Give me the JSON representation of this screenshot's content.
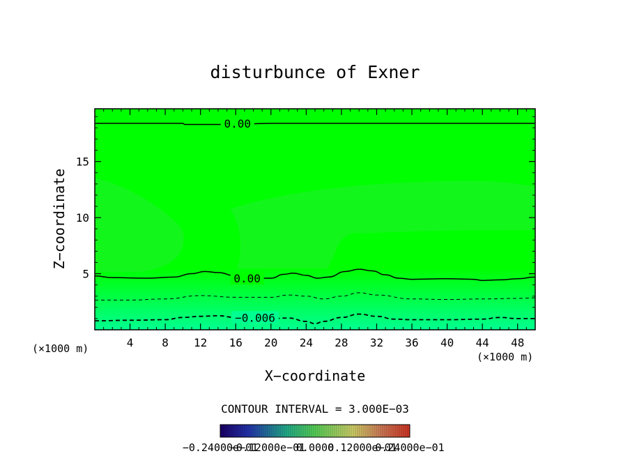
{
  "chart_data": {
    "type": "contour",
    "title": "disturbunce of Exner",
    "xlabel": "X−coordinate",
    "ylabel": "Z−coordinate",
    "x_unit_left": "(×1000 m)",
    "x_unit_right": "(×1000 m)",
    "xlim": [
      0,
      50
    ],
    "ylim": [
      0,
      19.7
    ],
    "x_ticks": [
      4,
      8,
      12,
      16,
      20,
      24,
      28,
      32,
      36,
      40,
      44,
      48
    ],
    "y_ticks": [
      5,
      10,
      15
    ],
    "contour_interval_text": "CONTOUR INTERVAL = 3.000E−03",
    "colorbar_labels": [
      "−0.24000e−01",
      "−0.12000e−01",
      "0.0000",
      "0.12000e−01",
      "0.24000e−01"
    ],
    "colors": {
      "field_top": "#00ff00",
      "field_bottom": "#00ff90",
      "anomaly": "#22ee33"
    },
    "contours": [
      {
        "level": 0.0,
        "style": "solid",
        "label": "0.00",
        "label_at": [
          16.2,
          18.4
        ],
        "points": [
          [
            0,
            18.4
          ],
          [
            10,
            18.4
          ],
          [
            10.2,
            18.3
          ],
          [
            13.5,
            18.3
          ],
          [
            15.5,
            18.3
          ],
          [
            20,
            18.4
          ],
          [
            30,
            18.4
          ],
          [
            40,
            18.4
          ],
          [
            50,
            18.4
          ]
        ]
      },
      {
        "level": 0.0,
        "style": "solid",
        "label": "0.00",
        "label_at": [
          17.3,
          4.6
        ],
        "points": [
          [
            0,
            4.8
          ],
          [
            2,
            4.65
          ],
          [
            6,
            4.6
          ],
          [
            9,
            4.7
          ],
          [
            11,
            5.0
          ],
          [
            12.5,
            5.2
          ],
          [
            14,
            5.1
          ],
          [
            16,
            4.8
          ],
          [
            18,
            4.6
          ],
          [
            20,
            4.6
          ],
          [
            21.5,
            4.95
          ],
          [
            22.5,
            5.05
          ],
          [
            24,
            4.85
          ],
          [
            25.3,
            4.6
          ],
          [
            26.5,
            4.7
          ],
          [
            28.5,
            5.2
          ],
          [
            30,
            5.4
          ],
          [
            31.5,
            5.25
          ],
          [
            33,
            4.9
          ],
          [
            34.5,
            4.6
          ],
          [
            36,
            4.5
          ],
          [
            40,
            4.55
          ],
          [
            43,
            4.5
          ],
          [
            44,
            4.4
          ],
          [
            46,
            4.45
          ],
          [
            48,
            4.55
          ],
          [
            50,
            4.7
          ]
        ]
      },
      {
        "level": -0.003,
        "style": "dashed-thin",
        "label": "",
        "points": [
          [
            0,
            2.65
          ],
          [
            4,
            2.65
          ],
          [
            8,
            2.75
          ],
          [
            12,
            3.05
          ],
          [
            16,
            2.9
          ],
          [
            20,
            2.9
          ],
          [
            22,
            3.1
          ],
          [
            24,
            3.0
          ],
          [
            26,
            2.75
          ],
          [
            28,
            3.0
          ],
          [
            30,
            3.3
          ],
          [
            32,
            3.1
          ],
          [
            36,
            2.75
          ],
          [
            40,
            2.7
          ],
          [
            44,
            2.75
          ],
          [
            48,
            2.8
          ],
          [
            50,
            2.85
          ]
        ]
      },
      {
        "level": -0.006,
        "style": "dashed",
        "label": "−0.006",
        "label_at": [
          18.2,
          1.1
        ],
        "points": [
          [
            0,
            0.8
          ],
          [
            4,
            0.85
          ],
          [
            8,
            0.9
          ],
          [
            10,
            1.1
          ],
          [
            12,
            1.2
          ],
          [
            14,
            1.25
          ],
          [
            16,
            1.1
          ],
          [
            20,
            1.0
          ],
          [
            22,
            1.05
          ],
          [
            24,
            0.75
          ],
          [
            25,
            0.55
          ],
          [
            26,
            0.75
          ],
          [
            28,
            1.1
          ],
          [
            30,
            1.4
          ],
          [
            32,
            1.2
          ],
          [
            34,
            0.95
          ],
          [
            36,
            0.9
          ],
          [
            40,
            0.9
          ],
          [
            44,
            0.95
          ],
          [
            46,
            1.1
          ],
          [
            48,
            1.0
          ],
          [
            50,
            1.0
          ]
        ]
      }
    ]
  }
}
